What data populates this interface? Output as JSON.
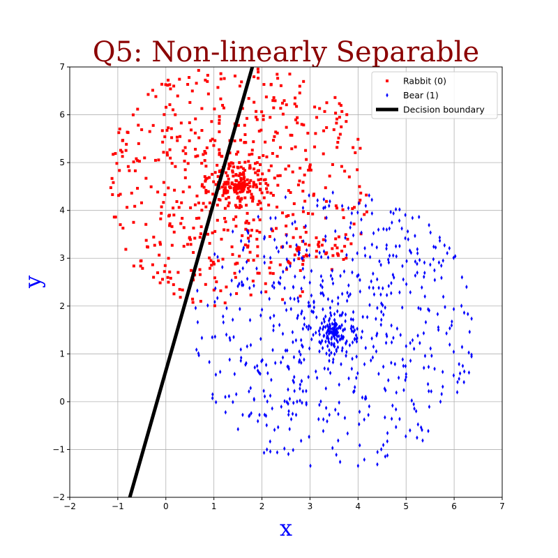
{
  "chart_data": {
    "type": "scatter",
    "title": "Q5: Non-linearly Separable",
    "xlabel": "x",
    "ylabel": "y",
    "xlim": [
      -2,
      7
    ],
    "ylim": [
      -2,
      7
    ],
    "xticks": [
      -2,
      -1,
      0,
      1,
      2,
      3,
      4,
      5,
      6,
      7
    ],
    "yticks": [
      -2,
      -1,
      0,
      1,
      2,
      3,
      4,
      5,
      6,
      7
    ],
    "grid": true,
    "legend_position": "top-right",
    "title_color": "#8b0000",
    "label_color": "#0000ff",
    "series": [
      {
        "name": "Rabbit (0)",
        "marker": "square",
        "color": "#ff0000",
        "center": [
          1.5,
          4.5
        ],
        "spread": 1.25,
        "count": 750,
        "x_extent": [
          -1.4,
          4.4
        ],
        "y_extent": [
          2.0,
          7.0
        ]
      },
      {
        "name": "Bear (1)",
        "marker": "diamond",
        "color": "#0000ff",
        "center": [
          3.5,
          1.5
        ],
        "spread": 1.35,
        "count": 750,
        "x_extent": [
          0.5,
          6.4
        ],
        "y_extent": [
          -1.4,
          4.5
        ]
      },
      {
        "name": "Decision boundary",
        "type": "line",
        "color": "#000000",
        "points": [
          [
            -0.75,
            -2
          ],
          [
            1.8,
            7
          ]
        ]
      }
    ]
  }
}
